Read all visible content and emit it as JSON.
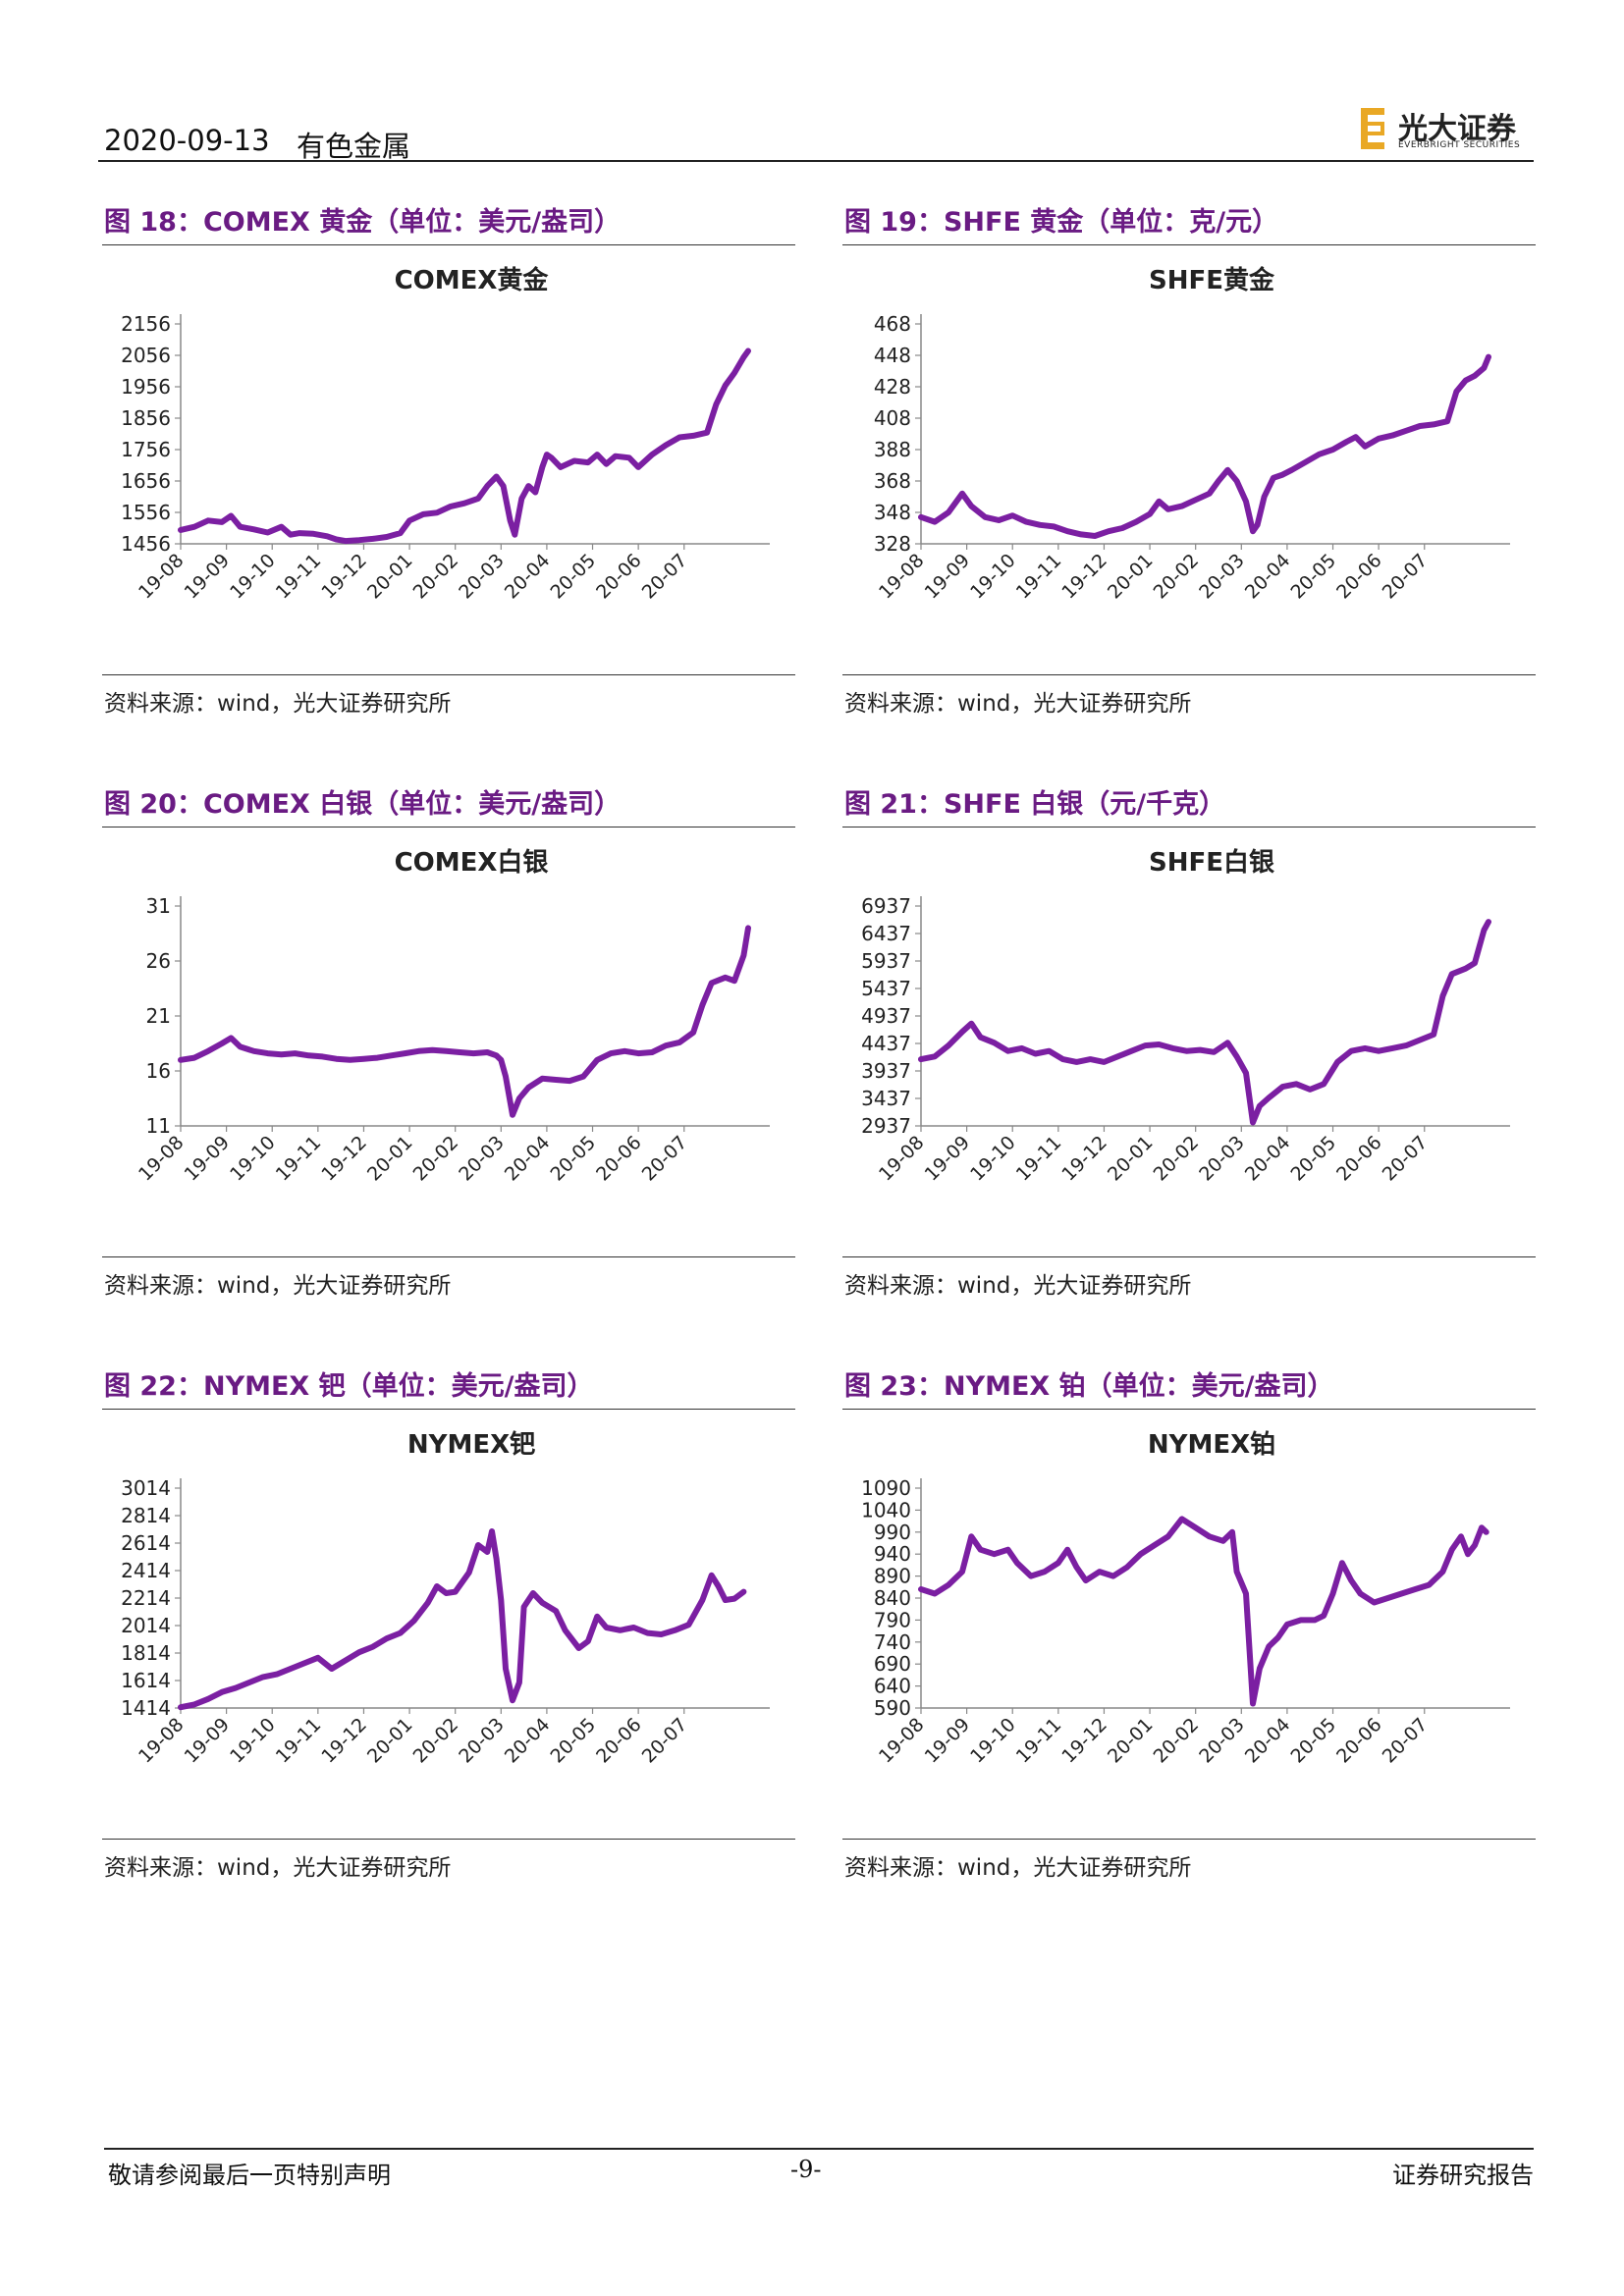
{
  "header": {
    "date": "2020-09-13",
    "sector": "有色金属",
    "logo_cn": "光大证券",
    "logo_en": "EVERBRIGHT SECURITIES"
  },
  "footer": {
    "disclaimer": "敬请参阅最后一页特别声明",
    "page": "-9-",
    "doc_type": "证券研究报告"
  },
  "colors": {
    "line": "#7b1fa2",
    "title": "#6a1b83",
    "logo_accent": "#e9a825"
  },
  "source_prefix": "资料来源：",
  "source_en": "wind",
  "source_suffix": "，光大证券研究所",
  "chart_data": [
    {
      "type": "line",
      "figure_title": "图 18：COMEX 黄金（单位：美元/盎司）",
      "title": "COMEX黄金",
      "ylim": [
        1456,
        2156
      ],
      "yticks": [
        1456,
        1556,
        1656,
        1756,
        1856,
        1956,
        2056,
        2156
      ],
      "xticks": [
        "19-08",
        "19-09",
        "19-10",
        "19-11",
        "19-12",
        "20-01",
        "20-02",
        "20-03",
        "20-04",
        "20-05",
        "20-06",
        "20-07"
      ],
      "x_range": [
        0,
        12.7
      ],
      "points": [
        [
          0,
          1500
        ],
        [
          0.3,
          1510
        ],
        [
          0.6,
          1530
        ],
        [
          0.9,
          1525
        ],
        [
          1.1,
          1545
        ],
        [
          1.3,
          1510
        ],
        [
          1.6,
          1502
        ],
        [
          1.9,
          1492
        ],
        [
          2.2,
          1510
        ],
        [
          2.4,
          1485
        ],
        [
          2.6,
          1490
        ],
        [
          2.9,
          1488
        ],
        [
          3.2,
          1480
        ],
        [
          3.4,
          1470
        ],
        [
          3.6,
          1465
        ],
        [
          3.9,
          1468
        ],
        [
          4.2,
          1472
        ],
        [
          4.5,
          1478
        ],
        [
          4.8,
          1490
        ],
        [
          5.0,
          1530
        ],
        [
          5.3,
          1550
        ],
        [
          5.6,
          1555
        ],
        [
          5.9,
          1575
        ],
        [
          6.2,
          1585
        ],
        [
          6.5,
          1600
        ],
        [
          6.7,
          1640
        ],
        [
          6.9,
          1670
        ],
        [
          7.05,
          1640
        ],
        [
          7.2,
          1530
        ],
        [
          7.3,
          1485
        ],
        [
          7.45,
          1600
        ],
        [
          7.6,
          1640
        ],
        [
          7.75,
          1620
        ],
        [
          7.9,
          1700
        ],
        [
          8.0,
          1740
        ],
        [
          8.1,
          1730
        ],
        [
          8.3,
          1700
        ],
        [
          8.6,
          1720
        ],
        [
          8.9,
          1715
        ],
        [
          9.1,
          1740
        ],
        [
          9.3,
          1710
        ],
        [
          9.5,
          1735
        ],
        [
          9.8,
          1730
        ],
        [
          10.0,
          1700
        ],
        [
          10.3,
          1740
        ],
        [
          10.6,
          1770
        ],
        [
          10.9,
          1795
        ],
        [
          11.2,
          1800
        ],
        [
          11.5,
          1810
        ],
        [
          11.7,
          1900
        ],
        [
          11.9,
          1960
        ],
        [
          12.1,
          2000
        ],
        [
          12.3,
          2050
        ],
        [
          12.4,
          2070
        ]
      ]
    },
    {
      "type": "line",
      "figure_title": "图 19：SHFE 黄金（单位：克/元）",
      "title": "SHFE黄金",
      "ylim": [
        328,
        468
      ],
      "yticks": [
        328,
        348,
        368,
        388,
        408,
        428,
        448,
        468
      ],
      "xticks": [
        "19-08",
        "19-09",
        "19-10",
        "19-11",
        "19-12",
        "20-01",
        "20-02",
        "20-03",
        "20-04",
        "20-05",
        "20-06",
        "20-07"
      ],
      "x_range": [
        0,
        12.7
      ],
      "points": [
        [
          0,
          345
        ],
        [
          0.3,
          342
        ],
        [
          0.6,
          348
        ],
        [
          0.9,
          360
        ],
        [
          1.1,
          352
        ],
        [
          1.4,
          345
        ],
        [
          1.7,
          343
        ],
        [
          2.0,
          346
        ],
        [
          2.3,
          342
        ],
        [
          2.6,
          340
        ],
        [
          2.9,
          339
        ],
        [
          3.2,
          336
        ],
        [
          3.5,
          334
        ],
        [
          3.8,
          333
        ],
        [
          4.1,
          336
        ],
        [
          4.4,
          338
        ],
        [
          4.7,
          342
        ],
        [
          5.0,
          347
        ],
        [
          5.2,
          355
        ],
        [
          5.4,
          350
        ],
        [
          5.7,
          352
        ],
        [
          6.0,
          356
        ],
        [
          6.3,
          360
        ],
        [
          6.5,
          368
        ],
        [
          6.7,
          375
        ],
        [
          6.9,
          368
        ],
        [
          7.1,
          355
        ],
        [
          7.25,
          336
        ],
        [
          7.35,
          340
        ],
        [
          7.5,
          358
        ],
        [
          7.7,
          370
        ],
        [
          7.9,
          372
        ],
        [
          8.1,
          375
        ],
        [
          8.4,
          380
        ],
        [
          8.7,
          385
        ],
        [
          9.0,
          388
        ],
        [
          9.3,
          393
        ],
        [
          9.5,
          396
        ],
        [
          9.7,
          390
        ],
        [
          10.0,
          395
        ],
        [
          10.3,
          397
        ],
        [
          10.6,
          400
        ],
        [
          10.9,
          403
        ],
        [
          11.2,
          404
        ],
        [
          11.5,
          406
        ],
        [
          11.7,
          425
        ],
        [
          11.9,
          432
        ],
        [
          12.1,
          435
        ],
        [
          12.3,
          440
        ],
        [
          12.4,
          447
        ]
      ]
    },
    {
      "type": "line",
      "figure_title": "图 20：COMEX 白银（单位：美元/盎司）",
      "title": "COMEX白银",
      "ylim": [
        11,
        31
      ],
      "yticks": [
        11,
        16,
        21,
        26,
        31
      ],
      "xticks": [
        "19-08",
        "19-09",
        "19-10",
        "19-11",
        "19-12",
        "20-01",
        "20-02",
        "20-03",
        "20-04",
        "20-05",
        "20-06",
        "20-07"
      ],
      "x_range": [
        0,
        12.7
      ],
      "points": [
        [
          0,
          17.0
        ],
        [
          0.3,
          17.2
        ],
        [
          0.6,
          17.8
        ],
        [
          0.9,
          18.5
        ],
        [
          1.1,
          19.0
        ],
        [
          1.3,
          18.2
        ],
        [
          1.6,
          17.8
        ],
        [
          1.9,
          17.6
        ],
        [
          2.2,
          17.5
        ],
        [
          2.5,
          17.6
        ],
        [
          2.8,
          17.4
        ],
        [
          3.1,
          17.3
        ],
        [
          3.4,
          17.1
        ],
        [
          3.7,
          17.0
        ],
        [
          4.0,
          17.1
        ],
        [
          4.3,
          17.2
        ],
        [
          4.6,
          17.4
        ],
        [
          4.9,
          17.6
        ],
        [
          5.2,
          17.8
        ],
        [
          5.5,
          17.9
        ],
        [
          5.8,
          17.8
        ],
        [
          6.1,
          17.7
        ],
        [
          6.4,
          17.6
        ],
        [
          6.7,
          17.7
        ],
        [
          6.9,
          17.4
        ],
        [
          7.0,
          17.0
        ],
        [
          7.1,
          15.5
        ],
        [
          7.25,
          12.0
        ],
        [
          7.4,
          13.5
        ],
        [
          7.6,
          14.5
        ],
        [
          7.9,
          15.3
        ],
        [
          8.2,
          15.2
        ],
        [
          8.5,
          15.1
        ],
        [
          8.8,
          15.5
        ],
        [
          9.1,
          17.0
        ],
        [
          9.4,
          17.6
        ],
        [
          9.7,
          17.8
        ],
        [
          10.0,
          17.6
        ],
        [
          10.3,
          17.7
        ],
        [
          10.6,
          18.3
        ],
        [
          10.9,
          18.6
        ],
        [
          11.2,
          19.5
        ],
        [
          11.4,
          22.0
        ],
        [
          11.6,
          24.0
        ],
        [
          11.9,
          24.5
        ],
        [
          12.1,
          24.2
        ],
        [
          12.3,
          26.5
        ],
        [
          12.4,
          29.0
        ]
      ]
    },
    {
      "type": "line",
      "figure_title": "图 21：SHFE 白银（元/千克）",
      "title": "SHFE白银",
      "ylim": [
        2937,
        6937
      ],
      "yticks": [
        2937,
        3437,
        3937,
        4437,
        4937,
        5437,
        5937,
        6437,
        6937
      ],
      "xticks": [
        "19-08",
        "19-09",
        "19-10",
        "19-11",
        "19-12",
        "20-01",
        "20-02",
        "20-03",
        "20-04",
        "20-05",
        "20-06",
        "20-07"
      ],
      "x_range": [
        0,
        12.7
      ],
      "points": [
        [
          0,
          4150
        ],
        [
          0.3,
          4200
        ],
        [
          0.6,
          4400
        ],
        [
          0.9,
          4650
        ],
        [
          1.1,
          4800
        ],
        [
          1.3,
          4550
        ],
        [
          1.6,
          4450
        ],
        [
          1.9,
          4300
        ],
        [
          2.2,
          4350
        ],
        [
          2.5,
          4250
        ],
        [
          2.8,
          4300
        ],
        [
          3.1,
          4150
        ],
        [
          3.4,
          4100
        ],
        [
          3.7,
          4150
        ],
        [
          4.0,
          4100
        ],
        [
          4.3,
          4200
        ],
        [
          4.6,
          4300
        ],
        [
          4.9,
          4400
        ],
        [
          5.2,
          4420
        ],
        [
          5.5,
          4350
        ],
        [
          5.8,
          4300
        ],
        [
          6.1,
          4320
        ],
        [
          6.4,
          4280
        ],
        [
          6.7,
          4450
        ],
        [
          6.9,
          4200
        ],
        [
          7.1,
          3900
        ],
        [
          7.25,
          3000
        ],
        [
          7.4,
          3300
        ],
        [
          7.6,
          3450
        ],
        [
          7.9,
          3650
        ],
        [
          8.2,
          3700
        ],
        [
          8.5,
          3600
        ],
        [
          8.8,
          3700
        ],
        [
          9.1,
          4100
        ],
        [
          9.4,
          4300
        ],
        [
          9.7,
          4350
        ],
        [
          10.0,
          4300
        ],
        [
          10.3,
          4350
        ],
        [
          10.6,
          4400
        ],
        [
          10.9,
          4500
        ],
        [
          11.2,
          4600
        ],
        [
          11.4,
          5300
        ],
        [
          11.6,
          5700
        ],
        [
          11.9,
          5800
        ],
        [
          12.1,
          5900
        ],
        [
          12.3,
          6500
        ],
        [
          12.4,
          6650
        ]
      ]
    },
    {
      "type": "line",
      "figure_title": "图 22：NYMEX 钯（单位：美元/盎司）",
      "title": "NYMEX钯",
      "ylim": [
        1414,
        3014
      ],
      "yticks": [
        1414,
        1614,
        1814,
        2014,
        2214,
        2414,
        2614,
        2814,
        3014
      ],
      "xticks": [
        "19-08",
        "19-09",
        "19-10",
        "19-11",
        "19-12",
        "20-01",
        "20-02",
        "20-03",
        "20-04",
        "20-05",
        "20-06",
        "20-07"
      ],
      "x_range": [
        0,
        12.7
      ],
      "points": [
        [
          0,
          1420
        ],
        [
          0.3,
          1440
        ],
        [
          0.6,
          1480
        ],
        [
          0.9,
          1530
        ],
        [
          1.2,
          1560
        ],
        [
          1.5,
          1600
        ],
        [
          1.8,
          1640
        ],
        [
          2.1,
          1660
        ],
        [
          2.4,
          1700
        ],
        [
          2.7,
          1740
        ],
        [
          3.0,
          1780
        ],
        [
          3.3,
          1700
        ],
        [
          3.6,
          1760
        ],
        [
          3.9,
          1820
        ],
        [
          4.2,
          1860
        ],
        [
          4.5,
          1920
        ],
        [
          4.8,
          1960
        ],
        [
          5.1,
          2050
        ],
        [
          5.4,
          2180
        ],
        [
          5.6,
          2300
        ],
        [
          5.8,
          2250
        ],
        [
          6.0,
          2260
        ],
        [
          6.3,
          2400
        ],
        [
          6.5,
          2600
        ],
        [
          6.7,
          2550
        ],
        [
          6.8,
          2700
        ],
        [
          6.9,
          2500
        ],
        [
          7.0,
          2200
        ],
        [
          7.1,
          1700
        ],
        [
          7.25,
          1470
        ],
        [
          7.4,
          1600
        ],
        [
          7.5,
          2150
        ],
        [
          7.7,
          2250
        ],
        [
          7.9,
          2180
        ],
        [
          8.2,
          2120
        ],
        [
          8.4,
          1980
        ],
        [
          8.7,
          1850
        ],
        [
          8.9,
          1900
        ],
        [
          9.1,
          2080
        ],
        [
          9.3,
          2000
        ],
        [
          9.6,
          1980
        ],
        [
          9.9,
          2000
        ],
        [
          10.2,
          1960
        ],
        [
          10.5,
          1950
        ],
        [
          10.8,
          1980
        ],
        [
          11.1,
          2020
        ],
        [
          11.4,
          2200
        ],
        [
          11.6,
          2380
        ],
        [
          11.75,
          2300
        ],
        [
          11.9,
          2200
        ],
        [
          12.1,
          2210
        ],
        [
          12.3,
          2260
        ]
      ]
    },
    {
      "type": "line",
      "figure_title": "图 23：NYMEX 铂（单位：美元/盎司）",
      "title": "NYMEX铂",
      "ylim": [
        590,
        1090
      ],
      "yticks": [
        590,
        640,
        690,
        740,
        790,
        840,
        890,
        940,
        990,
        1040,
        1090
      ],
      "xticks": [
        "19-08",
        "19-09",
        "19-10",
        "19-11",
        "19-12",
        "20-01",
        "20-02",
        "20-03",
        "20-04",
        "20-05",
        "20-06",
        "20-07"
      ],
      "x_range": [
        0,
        12.7
      ],
      "points": [
        [
          0,
          860
        ],
        [
          0.3,
          850
        ],
        [
          0.6,
          870
        ],
        [
          0.9,
          900
        ],
        [
          1.1,
          980
        ],
        [
          1.3,
          950
        ],
        [
          1.6,
          940
        ],
        [
          1.9,
          950
        ],
        [
          2.1,
          920
        ],
        [
          2.4,
          890
        ],
        [
          2.7,
          900
        ],
        [
          3.0,
          920
        ],
        [
          3.2,
          950
        ],
        [
          3.4,
          910
        ],
        [
          3.6,
          880
        ],
        [
          3.9,
          900
        ],
        [
          4.2,
          890
        ],
        [
          4.5,
          910
        ],
        [
          4.8,
          940
        ],
        [
          5.1,
          960
        ],
        [
          5.4,
          980
        ],
        [
          5.7,
          1020
        ],
        [
          6.0,
          1000
        ],
        [
          6.3,
          980
        ],
        [
          6.6,
          970
        ],
        [
          6.8,
          990
        ],
        [
          6.9,
          900
        ],
        [
          7.1,
          850
        ],
        [
          7.25,
          600
        ],
        [
          7.4,
          680
        ],
        [
          7.6,
          730
        ],
        [
          7.8,
          750
        ],
        [
          8.0,
          780
        ],
        [
          8.3,
          790
        ],
        [
          8.6,
          790
        ],
        [
          8.8,
          800
        ],
        [
          9.0,
          850
        ],
        [
          9.2,
          920
        ],
        [
          9.4,
          880
        ],
        [
          9.6,
          850
        ],
        [
          9.9,
          830
        ],
        [
          10.2,
          840
        ],
        [
          10.5,
          850
        ],
        [
          10.8,
          860
        ],
        [
          11.1,
          870
        ],
        [
          11.4,
          900
        ],
        [
          11.6,
          950
        ],
        [
          11.8,
          980
        ],
        [
          11.95,
          940
        ],
        [
          12.1,
          960
        ],
        [
          12.25,
          1000
        ],
        [
          12.35,
          990
        ]
      ]
    }
  ]
}
